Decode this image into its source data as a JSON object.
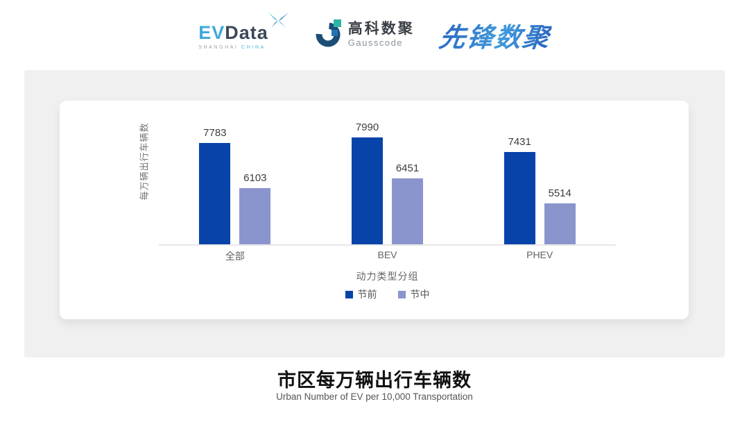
{
  "header": {
    "evdata_logo": {
      "part_ev": "EV",
      "part_data": "Data",
      "subtext_left": "SHANGHAI",
      "subtext_right": "CHINA"
    },
    "gausscode_logo": {
      "name_cn": "高科数聚",
      "name_en": "Gausscode"
    },
    "xianfeng_logo": {
      "text": "先锋数聚"
    }
  },
  "chart_data": {
    "type": "bar",
    "categories": [
      "全部",
      "BEV",
      "PHEV"
    ],
    "series": [
      {
        "name": "节前",
        "color": "#0843a9",
        "values": [
          7783,
          7990,
          7431
        ]
      },
      {
        "name": "节中",
        "color": "#8b95cd",
        "values": [
          6103,
          6451,
          5514
        ]
      }
    ],
    "xlabel": "动力类型分组",
    "ylabel": "每万辆出行车辆数",
    "ylim": [
      4000,
      8500
    ],
    "grid": false,
    "legend_position": "bottom",
    "value_labels": true,
    "title": "市区每万辆出行车辆数",
    "subtitle": "Urban Number of EV per 10,000 Transportation"
  },
  "footer": {
    "title": "市区每万辆出行车辆数",
    "subtitle": "Urban Number of EV per 10,000 Transportation"
  },
  "colors": {
    "panel_bg": "#f0f0f1",
    "card_bg": "#ffffff",
    "axis_line": "#e7e7e7",
    "series_dark": "#0843a9",
    "series_light": "#8b95cd"
  }
}
